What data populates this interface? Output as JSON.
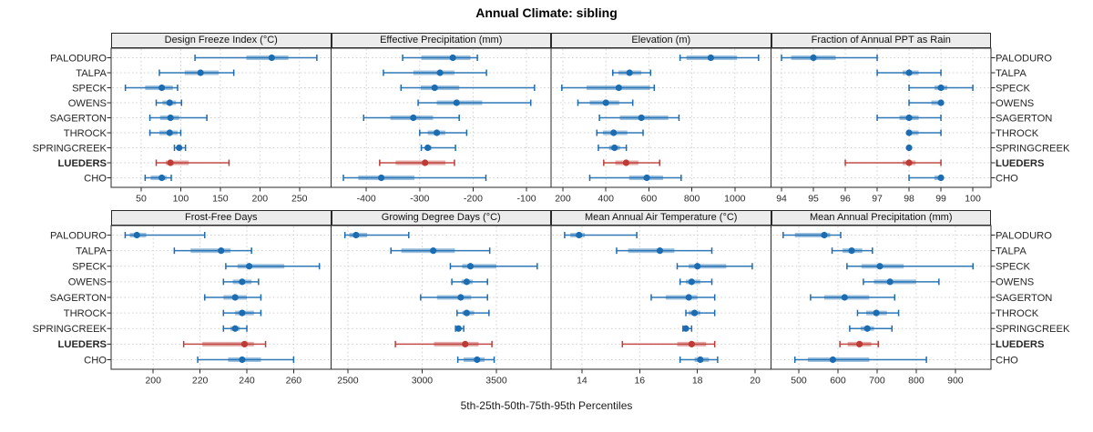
{
  "title": "Annual Climate: sibling",
  "caption": "5th-25th-50th-75th-95th Percentiles",
  "percentile_labels": [
    "5th",
    "25th",
    "50th",
    "75th",
    "95th"
  ],
  "sites": [
    "PALODURO",
    "TALPA",
    "SPECK",
    "OWENS",
    "SAGERTON",
    "THROCK",
    "SPRINGCREEK",
    "LUEDERS",
    "CHO"
  ],
  "highlight_site": "LUEDERS",
  "colors": {
    "series": "#1b6cb1",
    "highlight": "#bd3a35",
    "strip_bg": "#ececec",
    "border": "#2a2a2a",
    "grid": "#cfcfcf",
    "tick_label": "#2b2b2b",
    "site_label": "#262626"
  },
  "chart_data": [
    {
      "type": "dotplot",
      "row": 0,
      "col": 0,
      "title": "Design Freeze Index (°C)",
      "xlim": [
        12,
        290
      ],
      "ticks": [
        50,
        100,
        150,
        200,
        250
      ],
      "series": [
        {
          "site": "PALODURO",
          "p": [
            118,
            183,
            215,
            236,
            272
          ]
        },
        {
          "site": "TALPA",
          "p": [
            73,
            105,
            125,
            148,
            167
          ]
        },
        {
          "site": "SPECK",
          "p": [
            30,
            55,
            76,
            90,
            96
          ]
        },
        {
          "site": "OWENS",
          "p": [
            69,
            77,
            86,
            94,
            101
          ]
        },
        {
          "site": "SAGERTON",
          "p": [
            61,
            74,
            87,
            98,
            133
          ]
        },
        {
          "site": "THROCK",
          "p": [
            61,
            73,
            86,
            96,
            100
          ]
        },
        {
          "site": "SPRINGCREEK",
          "p": [
            92,
            96,
            98,
            101,
            106
          ]
        },
        {
          "site": "LUEDERS",
          "p": [
            69,
            81,
            87,
            110,
            161
          ]
        },
        {
          "site": "CHO",
          "p": [
            55,
            62,
            76,
            82,
            88
          ]
        }
      ]
    },
    {
      "type": "dotplot",
      "row": 0,
      "col": 1,
      "title": "Effective Precipitation (mm)",
      "xlim": [
        -466,
        -54
      ],
      "ticks": [
        -400,
        -300,
        -200,
        -100
      ],
      "series": [
        {
          "site": "PALODURO",
          "p": [
            -332,
            -297,
            -238,
            -205,
            -192
          ]
        },
        {
          "site": "TALPA",
          "p": [
            -368,
            -312,
            -262,
            -235,
            -175
          ]
        },
        {
          "site": "SPECK",
          "p": [
            -335,
            -298,
            -272,
            -226,
            -85
          ]
        },
        {
          "site": "OWENS",
          "p": [
            -303,
            -268,
            -231,
            -183,
            -92
          ]
        },
        {
          "site": "SAGERTON",
          "p": [
            -405,
            -355,
            -312,
            -275,
            -226
          ]
        },
        {
          "site": "THROCK",
          "p": [
            -300,
            -285,
            -268,
            -252,
            -212
          ]
        },
        {
          "site": "SPRINGCREEK",
          "p": [
            -297,
            -290,
            -285,
            -278,
            -233
          ]
        },
        {
          "site": "LUEDERS",
          "p": [
            -375,
            -345,
            -290,
            -252,
            -235
          ]
        },
        {
          "site": "CHO",
          "p": [
            -443,
            -415,
            -372,
            -310,
            -176
          ]
        }
      ]
    },
    {
      "type": "dotplot",
      "row": 0,
      "col": 2,
      "title": "Elevation (m)",
      "xlim": [
        145,
        1168
      ],
      "ticks": [
        200,
        400,
        600,
        800,
        1000
      ],
      "series": [
        {
          "site": "PALODURO",
          "p": [
            745,
            775,
            888,
            1010,
            1110
          ]
        },
        {
          "site": "TALPA",
          "p": [
            432,
            458,
            510,
            565,
            608
          ]
        },
        {
          "site": "SPECK",
          "p": [
            195,
            310,
            460,
            605,
            625
          ]
        },
        {
          "site": "OWENS",
          "p": [
            270,
            325,
            400,
            462,
            525
          ]
        },
        {
          "site": "SAGERTON",
          "p": [
            370,
            465,
            565,
            690,
            740
          ]
        },
        {
          "site": "THROCK",
          "p": [
            358,
            386,
            436,
            500,
            573
          ]
        },
        {
          "site": "SPRINGCREEK",
          "p": [
            365,
            415,
            440,
            465,
            495
          ]
        },
        {
          "site": "LUEDERS",
          "p": [
            390,
            444,
            494,
            551,
            650
          ]
        },
        {
          "site": "CHO",
          "p": [
            325,
            508,
            590,
            666,
            750
          ]
        }
      ]
    },
    {
      "type": "dotplot",
      "row": 0,
      "col": 3,
      "title": "Fraction of Annual PPT as Rain",
      "xlim": [
        93.67,
        100.57
      ],
      "ticks": [
        94,
        95,
        96,
        97,
        98,
        99,
        100
      ],
      "series": [
        {
          "site": "PALODURO",
          "p": [
            94,
            94.3,
            95,
            95.7,
            97
          ]
        },
        {
          "site": "TALPA",
          "p": [
            97,
            97.8,
            98,
            98.3,
            99
          ]
        },
        {
          "site": "SPECK",
          "p": [
            98,
            98.8,
            99,
            99.2,
            100
          ]
        },
        {
          "site": "OWENS",
          "p": [
            98,
            98.7,
            99,
            99,
            99
          ]
        },
        {
          "site": "SAGERTON",
          "p": [
            97,
            97.7,
            98,
            98.3,
            99
          ]
        },
        {
          "site": "THROCK",
          "p": [
            98,
            98,
            98,
            98.3,
            99
          ]
        },
        {
          "site": "SPRINGCREEK",
          "p": [
            98,
            98,
            98,
            98,
            98
          ]
        },
        {
          "site": "LUEDERS",
          "p": [
            96,
            97.8,
            98,
            98.2,
            99
          ]
        },
        {
          "site": "CHO",
          "p": [
            98,
            98.8,
            99,
            99,
            99
          ]
        }
      ]
    },
    {
      "type": "dotplot",
      "row": 1,
      "col": 0,
      "title": "Frost-Free Days",
      "xlim": [
        182,
        276
      ],
      "ticks": [
        200,
        220,
        240,
        260
      ],
      "series": [
        {
          "site": "PALODURO",
          "p": [
            188,
            190,
            193,
            197,
            222
          ]
        },
        {
          "site": "TALPA",
          "p": [
            209,
            216,
            229,
            233,
            242
          ]
        },
        {
          "site": "SPECK",
          "p": [
            231,
            236,
            241,
            256,
            271
          ]
        },
        {
          "site": "OWENS",
          "p": [
            230,
            234,
            238,
            242,
            245
          ]
        },
        {
          "site": "SAGERTON",
          "p": [
            222,
            230,
            235,
            240,
            246
          ]
        },
        {
          "site": "THROCK",
          "p": [
            230,
            235,
            238,
            243,
            246
          ]
        },
        {
          "site": "SPRINGCREEK",
          "p": [
            230,
            233,
            235,
            237,
            240
          ]
        },
        {
          "site": "LUEDERS",
          "p": [
            213,
            221,
            239,
            243,
            248
          ]
        },
        {
          "site": "CHO",
          "p": [
            219,
            232,
            238,
            246,
            260
          ]
        }
      ]
    },
    {
      "type": "dotplot",
      "row": 1,
      "col": 1,
      "title": "Growing Degree Days (°C)",
      "xlim": [
        2387,
        3868
      ],
      "ticks": [
        2500,
        3000,
        3500
      ],
      "series": [
        {
          "site": "PALODURO",
          "p": [
            2480,
            2510,
            2555,
            2630,
            2910
          ]
        },
        {
          "site": "TALPA",
          "p": [
            2790,
            2860,
            3075,
            3220,
            3455
          ]
        },
        {
          "site": "SPECK",
          "p": [
            3190,
            3270,
            3325,
            3500,
            3775
          ]
        },
        {
          "site": "OWENS",
          "p": [
            3200,
            3265,
            3300,
            3340,
            3440
          ]
        },
        {
          "site": "SAGERTON",
          "p": [
            2990,
            3100,
            3260,
            3330,
            3440
          ]
        },
        {
          "site": "THROCK",
          "p": [
            3235,
            3270,
            3300,
            3350,
            3450
          ]
        },
        {
          "site": "SPRINGCREEK",
          "p": [
            3225,
            3235,
            3245,
            3255,
            3280
          ]
        },
        {
          "site": "LUEDERS",
          "p": [
            2820,
            3080,
            3290,
            3380,
            3470
          ]
        },
        {
          "site": "CHO",
          "p": [
            3240,
            3280,
            3370,
            3420,
            3485
          ]
        }
      ]
    },
    {
      "type": "dotplot",
      "row": 1,
      "col": 2,
      "title": "Mean Annual Air Temperature (°C)",
      "xlim": [
        12.93,
        20.55
      ],
      "ticks": [
        14,
        16,
        18,
        20
      ],
      "series": [
        {
          "site": "PALODURO",
          "p": [
            13.4,
            13.6,
            13.9,
            14.1,
            15.9
          ]
        },
        {
          "site": "TALPA",
          "p": [
            15.2,
            15.6,
            16.7,
            17.2,
            18.5
          ]
        },
        {
          "site": "SPECK",
          "p": [
            17.3,
            17.7,
            18,
            19,
            19.9
          ]
        },
        {
          "site": "OWENS",
          "p": [
            17.4,
            17.6,
            17.8,
            18.1,
            18.5
          ]
        },
        {
          "site": "SAGERTON",
          "p": [
            16.4,
            16.9,
            17.7,
            18,
            18.6
          ]
        },
        {
          "site": "THROCK",
          "p": [
            17.6,
            17.7,
            17.9,
            18.1,
            18.6
          ]
        },
        {
          "site": "SPRINGCREEK",
          "p": [
            17.5,
            17.55,
            17.6,
            17.65,
            17.8
          ]
        },
        {
          "site": "LUEDERS",
          "p": [
            15.4,
            17.3,
            17.8,
            18.3,
            18.6
          ]
        },
        {
          "site": "CHO",
          "p": [
            17.4,
            17.9,
            18.1,
            18.4,
            18.7
          ]
        }
      ]
    },
    {
      "type": "dotplot",
      "row": 1,
      "col": 3,
      "title": "Mean Annual Precipitation (mm)",
      "xlim": [
        429,
        991
      ],
      "ticks": [
        500,
        600,
        700,
        800,
        900
      ],
      "series": [
        {
          "site": "PALODURO",
          "p": [
            460,
            490,
            565,
            580,
            607
          ]
        },
        {
          "site": "TALPA",
          "p": [
            585,
            612,
            635,
            662,
            688
          ]
        },
        {
          "site": "SPECK",
          "p": [
            623,
            660,
            707,
            768,
            945
          ]
        },
        {
          "site": "OWENS",
          "p": [
            665,
            692,
            733,
            800,
            858
          ]
        },
        {
          "site": "SAGERTON",
          "p": [
            530,
            565,
            617,
            680,
            745
          ]
        },
        {
          "site": "THROCK",
          "p": [
            650,
            672,
            698,
            725,
            755
          ]
        },
        {
          "site": "SPRINGCREEK",
          "p": [
            630,
            658,
            675,
            692,
            738
          ]
        },
        {
          "site": "LUEDERS",
          "p": [
            605,
            625,
            655,
            685,
            703
          ]
        },
        {
          "site": "CHO",
          "p": [
            490,
            523,
            587,
            680,
            826
          ]
        }
      ]
    }
  ]
}
